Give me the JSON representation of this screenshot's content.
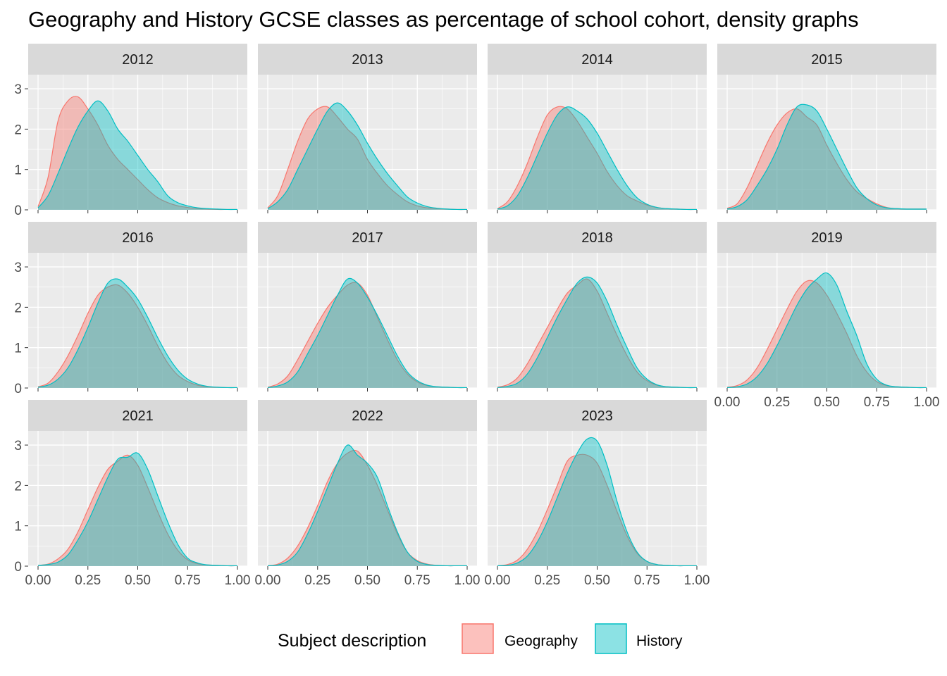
{
  "title": "Geography and History GCSE classes as percentage of school cohort, density graphs",
  "colors": {
    "geography": "#F8766D",
    "history": "#00BFC4",
    "panel_bg": "#EBEBEB",
    "strip_bg": "#D9D9D9",
    "grid": "#FFFFFF"
  },
  "legend": {
    "title": "Subject description",
    "entries": [
      "Geography",
      "History"
    ]
  },
  "chart_data": {
    "type": "area",
    "subtype": "density",
    "layout": {
      "rows": 3,
      "cols": 4,
      "facet_var": "year"
    },
    "xlim": [
      0,
      1
    ],
    "ylim": [
      0,
      3.35
    ],
    "xticks": [
      "0.00",
      "0.25",
      "0.50",
      "0.75",
      "1.00"
    ],
    "yticks": [
      "0",
      "1",
      "2",
      "3"
    ],
    "xtick_values": [
      0,
      0.25,
      0.5,
      0.75,
      1
    ],
    "ytick_values": [
      0,
      1,
      2,
      3
    ],
    "x_grid": [
      0,
      0.05,
      0.1,
      0.15,
      0.2,
      0.25,
      0.3,
      0.35,
      0.4,
      0.45,
      0.5,
      0.55,
      0.6,
      0.65,
      0.7,
      0.75,
      0.8,
      0.85,
      0.9,
      0.95,
      1.0
    ],
    "legend_position": "bottom",
    "grid": true,
    "panels": [
      {
        "year": "2012",
        "geography": [
          0.08,
          0.8,
          2.2,
          2.7,
          2.8,
          2.5,
          2.1,
          1.6,
          1.25,
          1.0,
          0.75,
          0.5,
          0.3,
          0.18,
          0.1,
          0.06,
          0.03,
          0.02,
          0.01,
          0.01,
          0.01
        ],
        "history": [
          0.05,
          0.35,
          0.9,
          1.5,
          2.05,
          2.45,
          2.7,
          2.45,
          2.0,
          1.7,
          1.35,
          1.0,
          0.7,
          0.35,
          0.18,
          0.1,
          0.05,
          0.03,
          0.02,
          0.01,
          0.01
        ]
      },
      {
        "year": "2013",
        "geography": [
          0.05,
          0.35,
          1.0,
          1.7,
          2.25,
          2.5,
          2.55,
          2.3,
          2.0,
          1.75,
          1.25,
          0.9,
          0.6,
          0.38,
          0.2,
          0.1,
          0.05,
          0.03,
          0.02,
          0.01,
          0.01
        ],
        "history": [
          0.03,
          0.2,
          0.5,
          1.0,
          1.5,
          2.0,
          2.45,
          2.65,
          2.45,
          2.1,
          1.65,
          1.25,
          0.9,
          0.6,
          0.32,
          0.17,
          0.08,
          0.04,
          0.02,
          0.01,
          0.01
        ]
      },
      {
        "year": "2014",
        "geography": [
          0.03,
          0.2,
          0.6,
          1.15,
          1.8,
          2.35,
          2.55,
          2.5,
          2.2,
          1.8,
          1.4,
          0.95,
          0.6,
          0.35,
          0.22,
          0.12,
          0.06,
          0.03,
          0.02,
          0.01,
          0.01
        ],
        "history": [
          0.02,
          0.1,
          0.35,
          0.8,
          1.35,
          1.9,
          2.35,
          2.55,
          2.45,
          2.25,
          1.9,
          1.45,
          1.0,
          0.6,
          0.3,
          0.14,
          0.06,
          0.03,
          0.02,
          0.01,
          0.01
        ]
      },
      {
        "year": "2015",
        "geography": [
          0.04,
          0.15,
          0.55,
          1.1,
          1.65,
          2.1,
          2.4,
          2.5,
          2.3,
          2.1,
          1.6,
          1.15,
          0.75,
          0.45,
          0.28,
          0.15,
          0.06,
          0.03,
          0.02,
          0.02,
          0.02
        ],
        "history": [
          0.02,
          0.08,
          0.25,
          0.6,
          1.0,
          1.5,
          2.1,
          2.55,
          2.6,
          2.45,
          2.0,
          1.5,
          1.0,
          0.55,
          0.28,
          0.12,
          0.05,
          0.03,
          0.02,
          0.02,
          0.02
        ]
      },
      {
        "year": "2016",
        "geography": [
          0.03,
          0.12,
          0.4,
          0.8,
          1.3,
          1.85,
          2.3,
          2.5,
          2.55,
          2.35,
          2.0,
          1.55,
          1.05,
          0.62,
          0.32,
          0.16,
          0.07,
          0.03,
          0.02,
          0.01,
          0.01
        ],
        "history": [
          0.02,
          0.07,
          0.22,
          0.5,
          0.95,
          1.5,
          2.1,
          2.6,
          2.7,
          2.5,
          2.2,
          1.75,
          1.25,
          0.8,
          0.45,
          0.22,
          0.1,
          0.04,
          0.02,
          0.01,
          0.01
        ]
      },
      {
        "year": "2017",
        "geography": [
          0.02,
          0.1,
          0.3,
          0.7,
          1.15,
          1.6,
          2.0,
          2.3,
          2.55,
          2.6,
          2.3,
          1.75,
          1.2,
          0.7,
          0.35,
          0.15,
          0.06,
          0.03,
          0.02,
          0.01,
          0.01
        ],
        "history": [
          0.01,
          0.05,
          0.15,
          0.4,
          0.85,
          1.3,
          1.8,
          2.3,
          2.7,
          2.6,
          2.25,
          1.8,
          1.3,
          0.8,
          0.4,
          0.18,
          0.07,
          0.03,
          0.02,
          0.01,
          0.01
        ]
      },
      {
        "year": "2018",
        "geography": [
          0.02,
          0.08,
          0.25,
          0.6,
          1.05,
          1.5,
          1.95,
          2.35,
          2.55,
          2.7,
          2.4,
          1.85,
          1.3,
          0.8,
          0.4,
          0.18,
          0.07,
          0.03,
          0.02,
          0.01,
          0.01
        ],
        "history": [
          0.01,
          0.04,
          0.12,
          0.35,
          0.75,
          1.25,
          1.75,
          2.2,
          2.6,
          2.75,
          2.6,
          2.15,
          1.55,
          1.0,
          0.5,
          0.22,
          0.08,
          0.03,
          0.02,
          0.01,
          0.01
        ]
      },
      {
        "year": "2019",
        "geography": [
          0.02,
          0.06,
          0.2,
          0.5,
          0.95,
          1.45,
          1.95,
          2.4,
          2.65,
          2.6,
          2.3,
          1.85,
          1.35,
          0.8,
          0.4,
          0.16,
          0.06,
          0.03,
          0.02,
          0.01,
          0.01
        ],
        "history": [
          0.01,
          0.03,
          0.1,
          0.28,
          0.6,
          1.05,
          1.55,
          2.05,
          2.45,
          2.7,
          2.85,
          2.55,
          1.9,
          1.3,
          0.6,
          0.22,
          0.07,
          0.03,
          0.02,
          0.01,
          0.01
        ]
      },
      {
        "year": "2021",
        "geography": [
          0.02,
          0.05,
          0.18,
          0.42,
          0.85,
          1.4,
          1.95,
          2.4,
          2.6,
          2.75,
          2.5,
          1.95,
          1.35,
          0.8,
          0.4,
          0.16,
          0.06,
          0.03,
          0.02,
          0.01,
          0.01
        ],
        "history": [
          0.02,
          0.04,
          0.1,
          0.28,
          0.65,
          1.1,
          1.65,
          2.2,
          2.65,
          2.7,
          2.8,
          2.4,
          1.75,
          1.1,
          0.55,
          0.2,
          0.08,
          0.03,
          0.02,
          0.01,
          0.01
        ]
      },
      {
        "year": "2022",
        "geography": [
          0.01,
          0.05,
          0.2,
          0.5,
          0.95,
          1.5,
          2.1,
          2.55,
          2.8,
          2.85,
          2.5,
          2.0,
          1.4,
          0.8,
          0.35,
          0.14,
          0.05,
          0.02,
          0.01,
          0.01,
          0.01
        ],
        "history": [
          0.01,
          0.03,
          0.12,
          0.35,
          0.8,
          1.35,
          1.95,
          2.55,
          3.0,
          2.75,
          2.55,
          2.2,
          1.5,
          0.85,
          0.35,
          0.12,
          0.04,
          0.02,
          0.01,
          0.01,
          0.01
        ]
      },
      {
        "year": "2023",
        "geography": [
          0.01,
          0.04,
          0.15,
          0.42,
          0.85,
          1.4,
          2.0,
          2.6,
          2.75,
          2.75,
          2.55,
          2.0,
          1.35,
          0.75,
          0.32,
          0.12,
          0.04,
          0.02,
          0.01,
          0.01,
          0.01
        ],
        "history": [
          0.01,
          0.02,
          0.08,
          0.25,
          0.6,
          1.1,
          1.7,
          2.3,
          2.8,
          3.15,
          3.1,
          2.5,
          1.6,
          0.85,
          0.35,
          0.12,
          0.04,
          0.02,
          0.01,
          0.01,
          0.01
        ]
      }
    ]
  }
}
